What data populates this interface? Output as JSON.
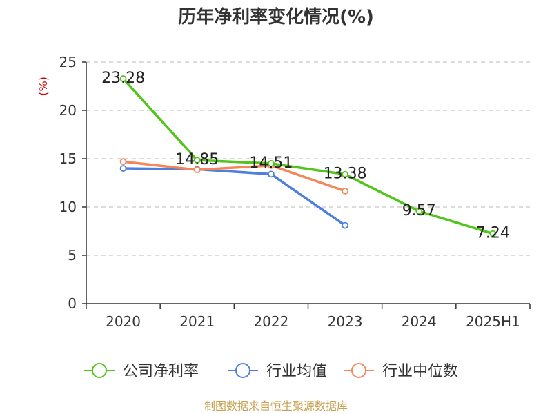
{
  "chart_data": {
    "type": "line",
    "title": "历年净利率变化情况(%)",
    "ylabel": "(%)",
    "xlabel": "",
    "ylim": [
      0,
      25
    ],
    "yticks": [
      0,
      5,
      10,
      15,
      20,
      25
    ],
    "grid": true,
    "legend_position": "bottom",
    "categories": [
      "2020",
      "2021",
      "2022",
      "2023",
      "2024",
      "2025H1"
    ],
    "series": [
      {
        "name": "公司净利率",
        "color": "#52c41a",
        "values": [
          23.28,
          14.85,
          14.51,
          13.38,
          9.57,
          7.24
        ],
        "labels": [
          "23.28",
          "14.85",
          "14.51",
          "13.38",
          "9.57",
          "7.24"
        ]
      },
      {
        "name": "行业均值",
        "color": "#4e7fdc",
        "values": [
          14.0,
          13.9,
          13.4,
          8.1,
          null,
          null
        ]
      },
      {
        "name": "行业中位数",
        "color": "#f4875a",
        "values": [
          14.7,
          13.85,
          14.3,
          11.65,
          null,
          null
        ]
      }
    ]
  },
  "footer": {
    "source": "制图数据来自恒生聚源数据库"
  }
}
